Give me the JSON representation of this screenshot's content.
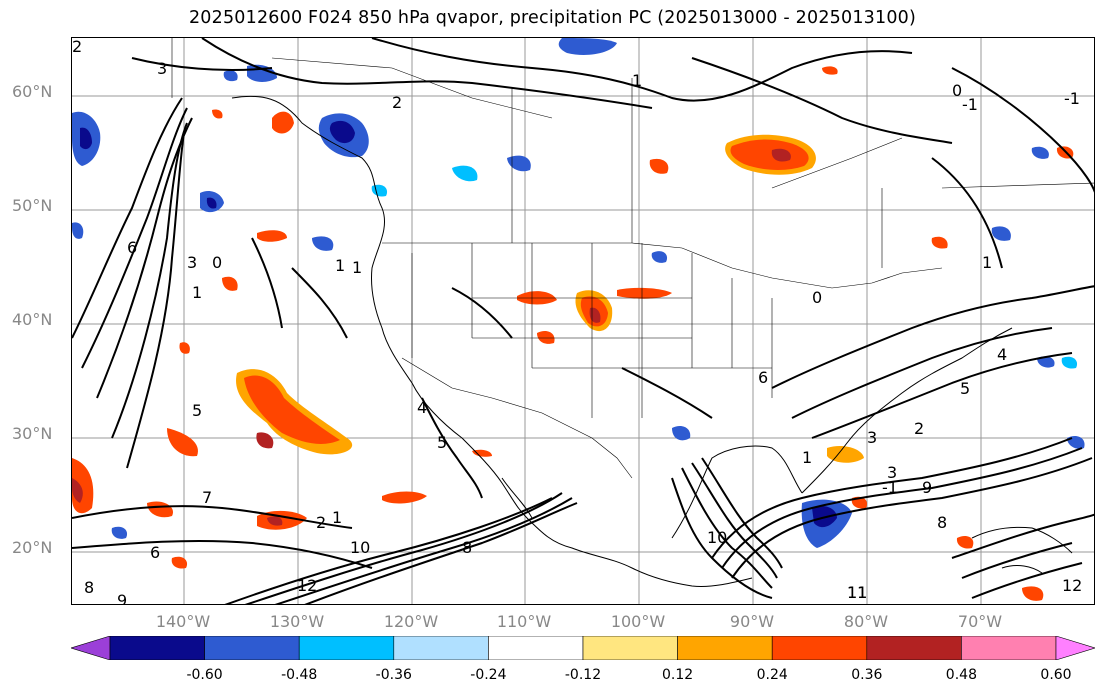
{
  "title": "2025012600 F024 850 hPa qvapor, precipitation PC (2025013000 - 2025013100)",
  "lat_labels": [
    "60°N",
    "50°N",
    "40°N",
    "30°N",
    "20°N"
  ],
  "lon_labels": [
    "140°W",
    "130°W",
    "120°W",
    "110°W",
    "100°W",
    "90°W",
    "80°W",
    "70°W"
  ],
  "contour_labels": [
    "3",
    "2",
    "1",
    "0",
    "-1",
    "2",
    "1",
    "6",
    "7",
    "8",
    "9",
    "6",
    "5",
    "3",
    "2",
    "1",
    "0",
    "1",
    "4",
    "5",
    "8",
    "10",
    "11",
    "12",
    "4",
    "5",
    "1",
    "2",
    "3",
    "1",
    "-1",
    "3",
    "6",
    "9",
    "8",
    "10",
    "11",
    "12",
    "1",
    "0",
    "-1"
  ],
  "colorbar": {
    "ticks": [
      "-0.60",
      "-0.48",
      "-0.36",
      "-0.24",
      "-0.12",
      "0.12",
      "0.24",
      "0.36",
      "0.48",
      "0.60"
    ],
    "colors": [
      "#9b3fd8",
      "#0a0a8c",
      "#2e5bd1",
      "#00bfff",
      "#b0e0ff",
      "#ffffff",
      "#ffe680",
      "#ffa500",
      "#ff4500",
      "#b22222",
      "#ff80b0",
      "#ff80ff"
    ]
  }
}
